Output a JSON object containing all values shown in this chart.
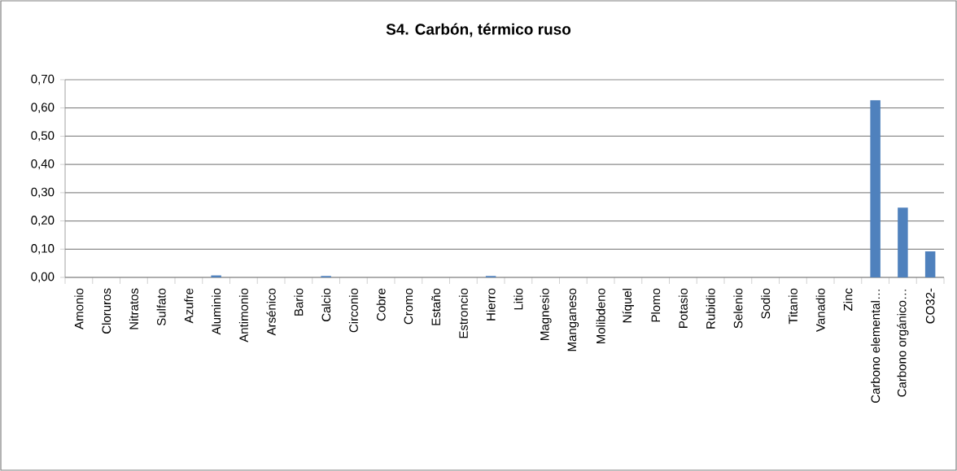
{
  "chart_data": {
    "type": "bar",
    "title": "S4. Carbón, térmico ruso",
    "categories": [
      "Amonio",
      "Cloruros",
      "Nitratos",
      "Sulfato",
      "Azufre",
      "Aluminio",
      "Antimonio",
      "Arsénico",
      "Bario",
      "Calcio",
      "Circonio",
      "Cobre",
      "Cromo",
      "Estaño",
      "Estroncio",
      "Hierro",
      "Litio",
      "Magnesio",
      "Manganeso",
      "Molibdeno",
      "Níquel",
      "Plomo",
      "Potasio",
      "Rubidio",
      "Selenio",
      "Sodio",
      "Titanio",
      "Vanadio",
      "Zinc",
      "Carbono elemental…",
      "Carbono orgánico…",
      "CO32-"
    ],
    "values": [
      0,
      0,
      0,
      0,
      0,
      0.007,
      0,
      0,
      0,
      0.005,
      0,
      0,
      0,
      0,
      0,
      0.005,
      0,
      0,
      0,
      0,
      0,
      0,
      0,
      0,
      0,
      0,
      0,
      0,
      0,
      0.627,
      0.247,
      0.092
    ],
    "color": "#4f81bd",
    "ylim": [
      0,
      0.7
    ],
    "yticks": [
      {
        "value": 0,
        "label": "0,00"
      },
      {
        "value": 0.1,
        "label": "0,10"
      },
      {
        "value": 0.2,
        "label": "0,20"
      },
      {
        "value": 0.3,
        "label": "0,30"
      },
      {
        "value": 0.4,
        "label": "0,40"
      },
      {
        "value": 0.5,
        "label": "0,50"
      },
      {
        "value": 0.6,
        "label": "0,60"
      },
      {
        "value": 0.7,
        "label": "0,70"
      }
    ],
    "grid": "y"
  }
}
